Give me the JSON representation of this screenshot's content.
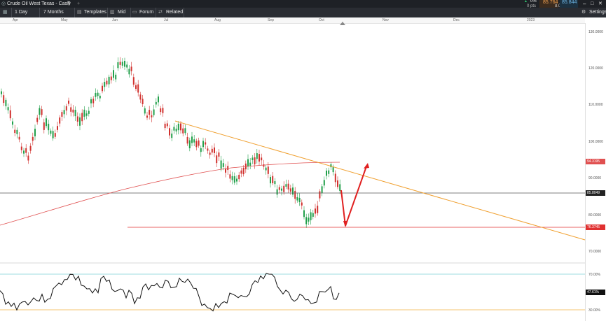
{
  "header": {
    "instrument": "Crude Oil West Texas - Cash",
    "change_pct": "0%",
    "change_pts": "0 pts",
    "bid": "85.764",
    "spread": "8.0",
    "ask": "85.844"
  },
  "toolbar": {
    "timeframe": "1 Day",
    "range": "7 Months",
    "templates": "Templates",
    "price_type": "Mid",
    "forum": "Forum",
    "related": "Related",
    "settings": "Settings"
  },
  "time_axis": [
    "Apr",
    "May",
    "Jun",
    "Jul",
    "Aug",
    "Sep",
    "Oct",
    "Nov",
    "Dec",
    "2023"
  ],
  "price_axis": [
    "130.0000",
    "120.0000",
    "110.0000",
    "100.0000",
    "90.0000",
    "80.0000",
    "70.0000"
  ],
  "price_badges": {
    "ma": "94.3195",
    "last": "85.8049",
    "support": "76.3745"
  },
  "indicator_axis": [
    "70.00%",
    "30.00%"
  ],
  "indicator_badge": "47.61%",
  "colors": {
    "up": "#22a04b",
    "down": "#d1312e",
    "trendline": "#f0a030",
    "ma": "#e05050",
    "support": "#e03030",
    "arrow": "#e02020"
  }
}
